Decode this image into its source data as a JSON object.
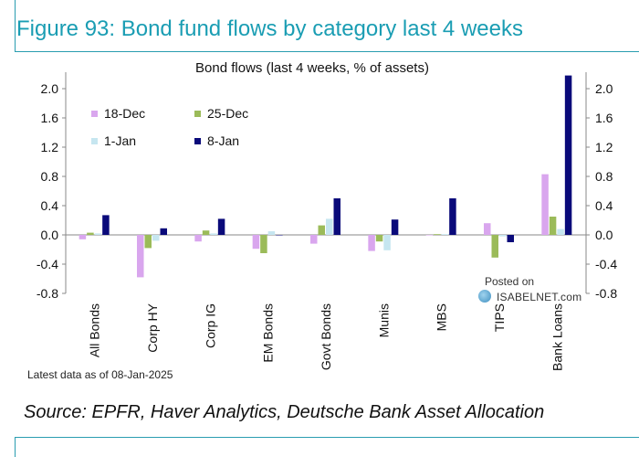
{
  "figure": {
    "title": "Figure 93: Bond fund flows by category last 4 weeks",
    "source": "Source: EPFR, Haver Analytics, Deutsche Bank Asset Allocation",
    "note": "Latest data as of 08-Jan-2025",
    "watermark_line1": "Posted on",
    "watermark_line2": "ISABELNET.com"
  },
  "colors": {
    "accent": "#1a9db3",
    "s18dec": "#d9a6ee",
    "s25dec": "#9bbb59",
    "s1jan": "#c6e6f0",
    "s8jan": "#0a0a7a"
  },
  "chart_data": {
    "type": "bar",
    "title": "Bond flows (last 4 weeks, % of assets)",
    "categories": [
      "All Bonds",
      "Corp HY",
      "Corp IG",
      "EM Bonds",
      "Govt Bonds",
      "Munis",
      "MBS",
      "TIPS",
      "Bank Loans"
    ],
    "series": [
      {
        "name": "18-Dec",
        "values": [
          -0.06,
          -0.58,
          -0.09,
          -0.19,
          -0.12,
          -0.22,
          0.0,
          0.16,
          0.83
        ]
      },
      {
        "name": "25-Dec",
        "values": [
          0.03,
          -0.18,
          0.06,
          -0.25,
          0.13,
          -0.09,
          0.01,
          -0.31,
          0.25
        ]
      },
      {
        "name": "1-Jan",
        "values": [
          0.02,
          -0.08,
          0.02,
          0.05,
          0.22,
          -0.21,
          0.01,
          -0.02,
          0.08
        ]
      },
      {
        "name": "8-Jan",
        "values": [
          0.27,
          0.09,
          0.22,
          0.0,
          0.5,
          0.21,
          0.5,
          -0.1,
          2.18
        ]
      }
    ],
    "ylim": [
      -0.8,
      2.2
    ],
    "yticks": [
      "2.0",
      "1.6",
      "1.2",
      "0.8",
      "0.4",
      "0.0",
      "-0.4",
      "-0.8"
    ],
    "legend": "top-left",
    "grid": false
  }
}
